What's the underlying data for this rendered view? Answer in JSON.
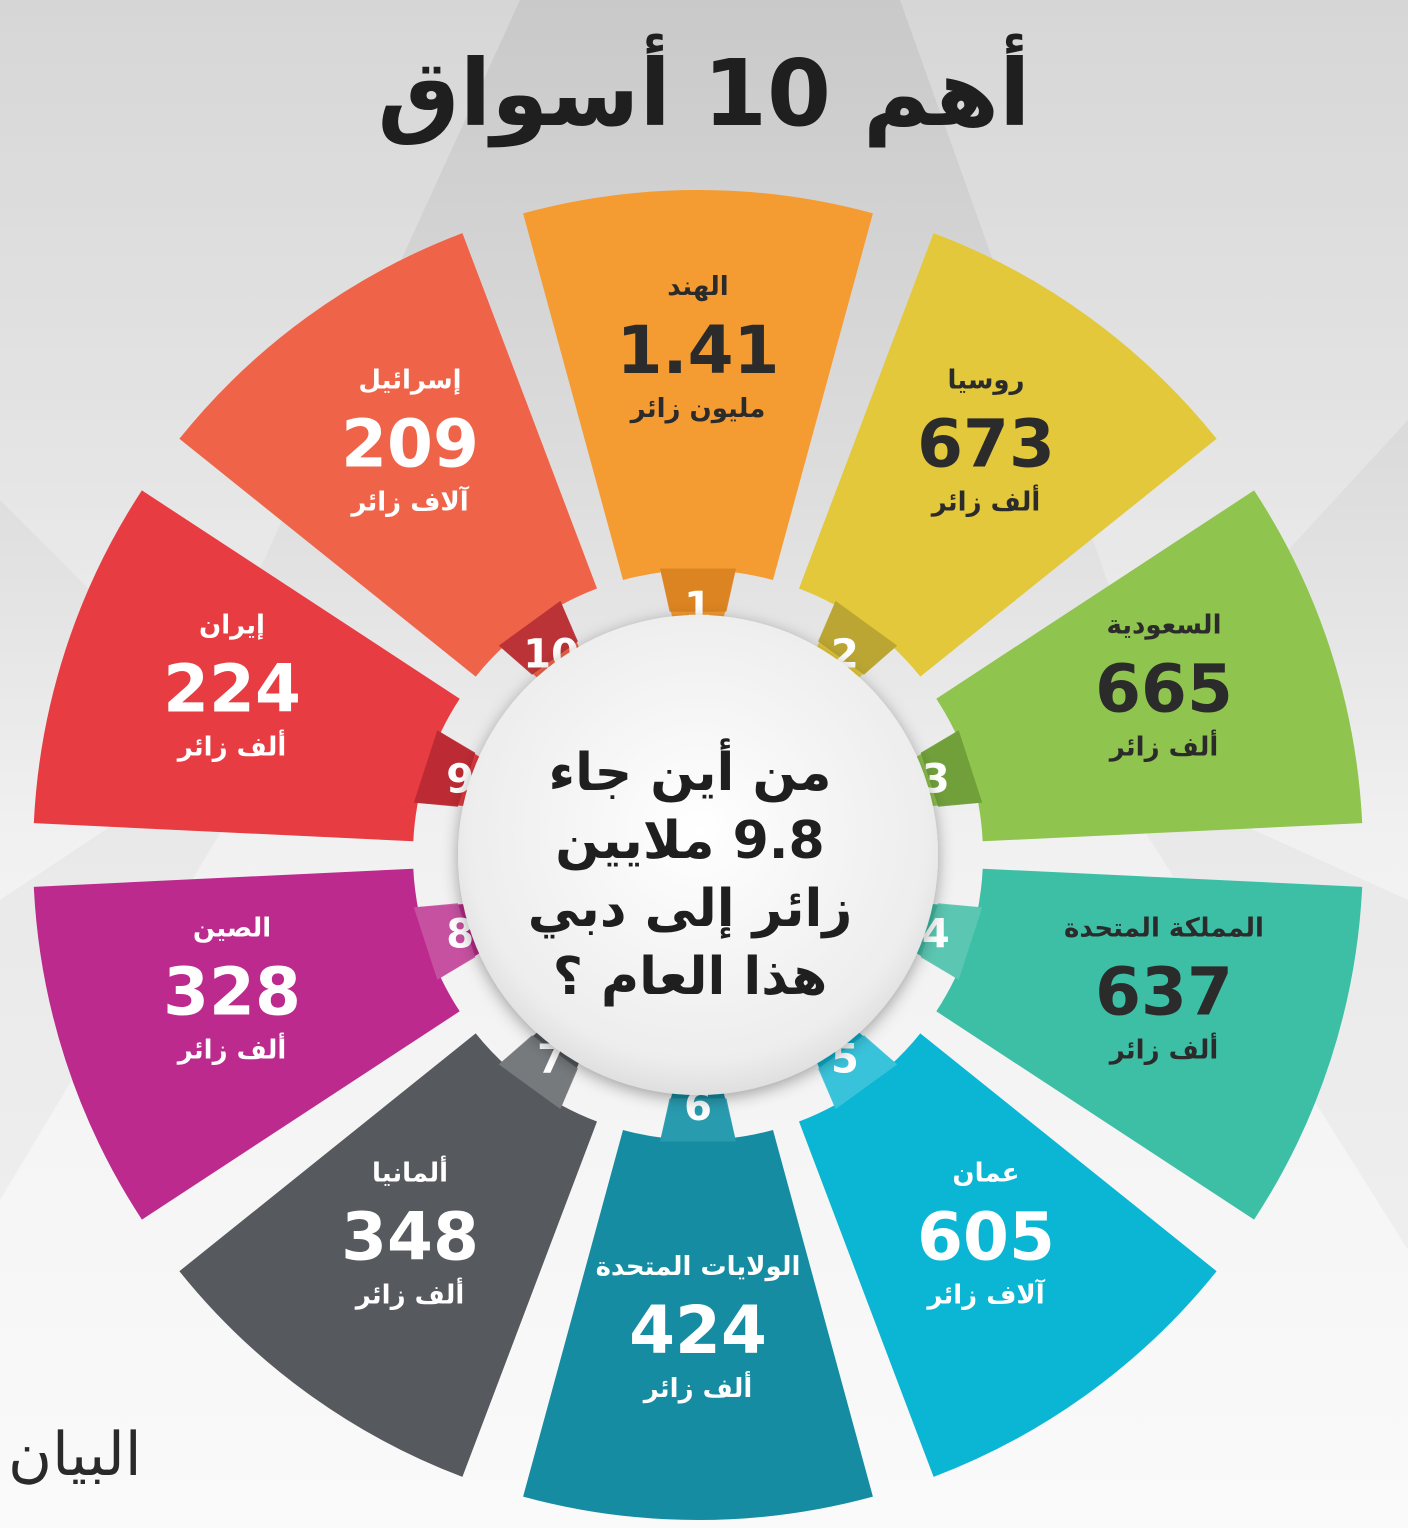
{
  "title": "أهم 10 أسواق",
  "center_text": [
    "من أين جاء",
    "9.8 ملايين",
    "زائر إلى دبي",
    "هذا العام ؟"
  ],
  "logo": "البيان",
  "chart_data": {
    "type": "pie",
    "title": "أهم 10 أسواق",
    "subtitle": "من أين جاء 9.8 ملايين زائر إلى دبي هذا العام ؟",
    "items": [
      {
        "rank": "1",
        "country": "الهند",
        "value": "1.41",
        "unit": "مليون زائر",
        "color": "#f49b31",
        "dark": "#d98220",
        "text_color": "#2b2b2b"
      },
      {
        "rank": "2",
        "country": "روسيا",
        "value": "673",
        "unit": "ألف زائر",
        "color": "#e2c83a",
        "dark": "#b7a233",
        "text_color": "#2b2b2b"
      },
      {
        "rank": "3",
        "country": "السعودية",
        "value": "665",
        "unit": "ألف زائر",
        "color": "#8fc44e",
        "dark": "#6e9c3a",
        "text_color": "#2b2b2b"
      },
      {
        "rank": "4",
        "country": "المملكة المتحدة",
        "value": "637",
        "unit": "ألف زائر",
        "color": "#3dbfa6",
        "dark": "#5ec7b3",
        "text_color": "#2b2b2b"
      },
      {
        "rank": "5",
        "country": "عمان",
        "value": "605",
        "unit": "آلاف زائر",
        "color": "#0bb6d4",
        "dark": "#3ec4dc",
        "text_color": "#ffffff"
      },
      {
        "rank": "6",
        "country": "الولايات المتحدة",
        "value": "424",
        "unit": "ألف زائر",
        "color": "#158ca1",
        "dark": "#2a9cb0",
        "text_color": "#ffffff"
      },
      {
        "rank": "7",
        "country": "ألمانيا",
        "value": "348",
        "unit": "ألف زائر",
        "color": "#56595d",
        "dark": "#7a7d80",
        "text_color": "#ffffff"
      },
      {
        "rank": "8",
        "country": "الصين",
        "value": "328",
        "unit": "ألف زائر",
        "color": "#bb2a8c",
        "dark": "#c855a2",
        "text_color": "#ffffff"
      },
      {
        "rank": "9",
        "country": "إيران",
        "value": "224",
        "unit": "ألف زائر",
        "color": "#e73c42",
        "dark": "#b72932",
        "text_color": "#ffffff"
      },
      {
        "rank": "10",
        "country": "إسرائيل",
        "value": "209",
        "unit": "آلاف زائر",
        "color": "#ef6348",
        "dark": "#b52e34",
        "text_color": "#ffffff"
      }
    ]
  }
}
